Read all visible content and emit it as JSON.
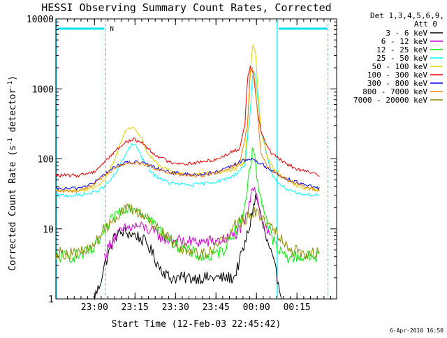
{
  "chart_data": {
    "type": "line",
    "title": "HESSI Observing Summary Count Rates, Corrected",
    "xlabel": "Start Time (12-Feb-03 22:45:42)",
    "ylabel_main": "Corrected Count Rate (s",
    "ylabel_sup1": "-1",
    "ylabel_mid": " detector",
    "ylabel_sup2": "-1",
    "ylabel_end": ")",
    "yscale": "log",
    "ylim": [
      1,
      10000
    ],
    "xlim_minutes": [
      0,
      104
    ],
    "x_ticks": [
      {
        "label": "23:00",
        "minute": 14.3
      },
      {
        "label": "23:15",
        "minute": 29.3
      },
      {
        "label": "23:30",
        "minute": 44.3
      },
      {
        "label": "23:45",
        "minute": 59.3
      },
      {
        "label": "00:00",
        "minute": 74.3
      },
      {
        "label": "00:15",
        "minute": 89.3
      }
    ],
    "y_ticks": [
      {
        "label": "1",
        "value": 1
      },
      {
        "label": "10",
        "value": 10
      },
      {
        "label": "100",
        "value": 100
      },
      {
        "label": "1000",
        "value": 1000
      },
      {
        "label": "10000",
        "value": 10000
      }
    ],
    "legend_title": "Det 1,3,4,5,6,9,",
    "legend_subtitle": "Att 0",
    "legend_position": "right",
    "night_marker_label": "N",
    "footer_timestamp": "6-Apr-2010 16:50",
    "markers_minutes": {
      "night_start": 18.5,
      "night_line_end": 104,
      "saa_start": 82,
      "saa_end": 100.8
    },
    "series": [
      {
        "name": "3 - 6 keV",
        "color": "#000000",
        "points": [
          [
            14,
            1
          ],
          [
            16,
            1.5
          ],
          [
            18,
            3
          ],
          [
            20,
            5
          ],
          [
            22,
            8
          ],
          [
            25,
            9
          ],
          [
            30,
            8
          ],
          [
            34,
            6
          ],
          [
            38,
            3
          ],
          [
            42,
            2
          ],
          [
            50,
            2
          ],
          [
            56,
            2
          ],
          [
            62,
            2
          ],
          [
            66,
            2
          ],
          [
            70,
            6
          ],
          [
            72,
            12
          ],
          [
            73,
            20
          ],
          [
            74,
            28
          ],
          [
            75,
            24
          ],
          [
            76,
            14
          ],
          [
            78,
            7
          ],
          [
            80,
            4
          ],
          [
            82,
            2
          ],
          [
            84,
            1
          ]
        ]
      },
      {
        "name": "6 - 12 keV",
        "color": "#d000d0",
        "points": [
          [
            18,
            4
          ],
          [
            20,
            6
          ],
          [
            22,
            8
          ],
          [
            26,
            10
          ],
          [
            30,
            11
          ],
          [
            34,
            10
          ],
          [
            38,
            8
          ],
          [
            42,
            7
          ],
          [
            48,
            6.5
          ],
          [
            56,
            6.5
          ],
          [
            62,
            7
          ],
          [
            66,
            8
          ],
          [
            70,
            12
          ],
          [
            72,
            25
          ],
          [
            73,
            42
          ],
          [
            74,
            38
          ],
          [
            75,
            25
          ],
          [
            76,
            15
          ],
          [
            78,
            10
          ],
          [
            80,
            7
          ]
        ]
      },
      {
        "name": "12 - 25 keV",
        "color": "#00ee00",
        "points": [
          [
            0,
            4
          ],
          [
            5,
            4
          ],
          [
            10,
            4.3
          ],
          [
            14,
            5
          ],
          [
            18,
            9
          ],
          [
            22,
            16
          ],
          [
            26,
            21
          ],
          [
            30,
            20
          ],
          [
            34,
            15
          ],
          [
            38,
            10
          ],
          [
            42,
            7
          ],
          [
            48,
            5
          ],
          [
            54,
            4
          ],
          [
            58,
            4
          ],
          [
            62,
            5
          ],
          [
            66,
            9
          ],
          [
            69,
            14
          ],
          [
            71,
            40
          ],
          [
            73,
            150
          ],
          [
            74,
            80
          ],
          [
            75,
            40
          ],
          [
            77,
            20
          ],
          [
            79,
            10
          ],
          [
            82,
            5
          ],
          [
            86,
            4
          ],
          [
            90,
            4
          ],
          [
            95,
            4
          ],
          [
            98,
            4
          ]
        ]
      },
      {
        "name": "25 - 50 keV",
        "color": "#00ffff",
        "points": [
          [
            0,
            30
          ],
          [
            8,
            30
          ],
          [
            14,
            33
          ],
          [
            18,
            40
          ],
          [
            22,
            60
          ],
          [
            26,
            120
          ],
          [
            28,
            160
          ],
          [
            30,
            150
          ],
          [
            32,
            100
          ],
          [
            36,
            60
          ],
          [
            42,
            45
          ],
          [
            50,
            42
          ],
          [
            56,
            45
          ],
          [
            62,
            50
          ],
          [
            66,
            58
          ],
          [
            70,
            80
          ],
          [
            72,
            500
          ],
          [
            73,
            1900
          ],
          [
            74,
            1400
          ],
          [
            75,
            600
          ],
          [
            76,
            250
          ],
          [
            78,
            120
          ],
          [
            80,
            60
          ],
          [
            84,
            40
          ],
          [
            90,
            32
          ],
          [
            98,
            30
          ]
        ]
      },
      {
        "name": "50 - 100 keV",
        "color": "#e0d000",
        "points": [
          [
            0,
            35
          ],
          [
            8,
            35
          ],
          [
            14,
            38
          ],
          [
            18,
            50
          ],
          [
            22,
            100
          ],
          [
            25,
            220
          ],
          [
            28,
            290
          ],
          [
            30,
            250
          ],
          [
            32,
            180
          ],
          [
            34,
            120
          ],
          [
            38,
            80
          ],
          [
            44,
            65
          ],
          [
            50,
            60
          ],
          [
            56,
            62
          ],
          [
            62,
            65
          ],
          [
            66,
            70
          ],
          [
            70,
            90
          ],
          [
            71,
            300
          ],
          [
            72,
            1500
          ],
          [
            73,
            5000
          ],
          [
            74,
            3000
          ],
          [
            75,
            800
          ],
          [
            76,
            250
          ],
          [
            78,
            120
          ],
          [
            80,
            80
          ],
          [
            84,
            55
          ],
          [
            90,
            40
          ],
          [
            98,
            35
          ]
        ]
      },
      {
        "name": "100 - 300 keV",
        "color": "#ee0000",
        "points": [
          [
            0,
            58
          ],
          [
            8,
            58
          ],
          [
            14,
            65
          ],
          [
            18,
            90
          ],
          [
            22,
            130
          ],
          [
            26,
            175
          ],
          [
            29,
            190
          ],
          [
            32,
            170
          ],
          [
            36,
            120
          ],
          [
            42,
            90
          ],
          [
            48,
            85
          ],
          [
            54,
            90
          ],
          [
            60,
            100
          ],
          [
            64,
            120
          ],
          [
            68,
            140
          ],
          [
            70,
            300
          ],
          [
            71,
            1500
          ],
          [
            72,
            2100
          ],
          [
            73,
            1800
          ],
          [
            74,
            900
          ],
          [
            75,
            400
          ],
          [
            76,
            250
          ],
          [
            78,
            160
          ],
          [
            80,
            120
          ],
          [
            84,
            90
          ],
          [
            90,
            70
          ],
          [
            98,
            58
          ]
        ]
      },
      {
        "name": "300 - 800 keV",
        "color": "#0000ee",
        "points": [
          [
            0,
            37
          ],
          [
            8,
            38
          ],
          [
            14,
            45
          ],
          [
            18,
            60
          ],
          [
            22,
            78
          ],
          [
            26,
            88
          ],
          [
            29,
            90
          ],
          [
            32,
            87
          ],
          [
            36,
            77
          ],
          [
            42,
            65
          ],
          [
            48,
            60
          ],
          [
            54,
            60
          ],
          [
            60,
            65
          ],
          [
            64,
            75
          ],
          [
            68,
            90
          ],
          [
            72,
            100
          ],
          [
            74,
            95
          ],
          [
            76,
            85
          ],
          [
            80,
            68
          ],
          [
            84,
            55
          ],
          [
            90,
            45
          ],
          [
            98,
            37
          ]
        ]
      },
      {
        "name": "800 - 7000 keV",
        "color": "#ff7f00",
        "points": [
          [
            0,
            34
          ],
          [
            8,
            35
          ],
          [
            14,
            43
          ],
          [
            18,
            58
          ],
          [
            22,
            75
          ],
          [
            26,
            85
          ],
          [
            29,
            88
          ],
          [
            32,
            85
          ],
          [
            36,
            75
          ],
          [
            42,
            62
          ],
          [
            48,
            58
          ],
          [
            54,
            58
          ],
          [
            60,
            63
          ],
          [
            64,
            72
          ],
          [
            68,
            85
          ],
          [
            71,
            300
          ],
          [
            72,
            1800
          ],
          [
            73,
            2000
          ],
          [
            74,
            1000
          ],
          [
            75,
            300
          ],
          [
            76,
            120
          ],
          [
            78,
            80
          ],
          [
            82,
            60
          ],
          [
            86,
            50
          ],
          [
            92,
            40
          ],
          [
            98,
            34
          ]
        ]
      },
      {
        "name": "7000 - 20000 keV",
        "color": "#8b8b00",
        "points": [
          [
            0,
            4.5
          ],
          [
            8,
            4.5
          ],
          [
            12,
            5
          ],
          [
            14,
            6
          ],
          [
            18,
            10
          ],
          [
            22,
            15
          ],
          [
            26,
            19
          ],
          [
            30,
            18
          ],
          [
            34,
            14
          ],
          [
            38,
            10
          ],
          [
            42,
            7
          ],
          [
            48,
            5
          ],
          [
            54,
            4.5
          ],
          [
            58,
            5
          ],
          [
            62,
            7
          ],
          [
            66,
            11
          ],
          [
            70,
            14
          ],
          [
            72,
            16
          ],
          [
            74,
            17
          ],
          [
            76,
            15
          ],
          [
            80,
            11
          ],
          [
            84,
            7
          ],
          [
            88,
            5
          ],
          [
            92,
            4.5
          ],
          [
            98,
            4.5
          ]
        ]
      }
    ]
  }
}
